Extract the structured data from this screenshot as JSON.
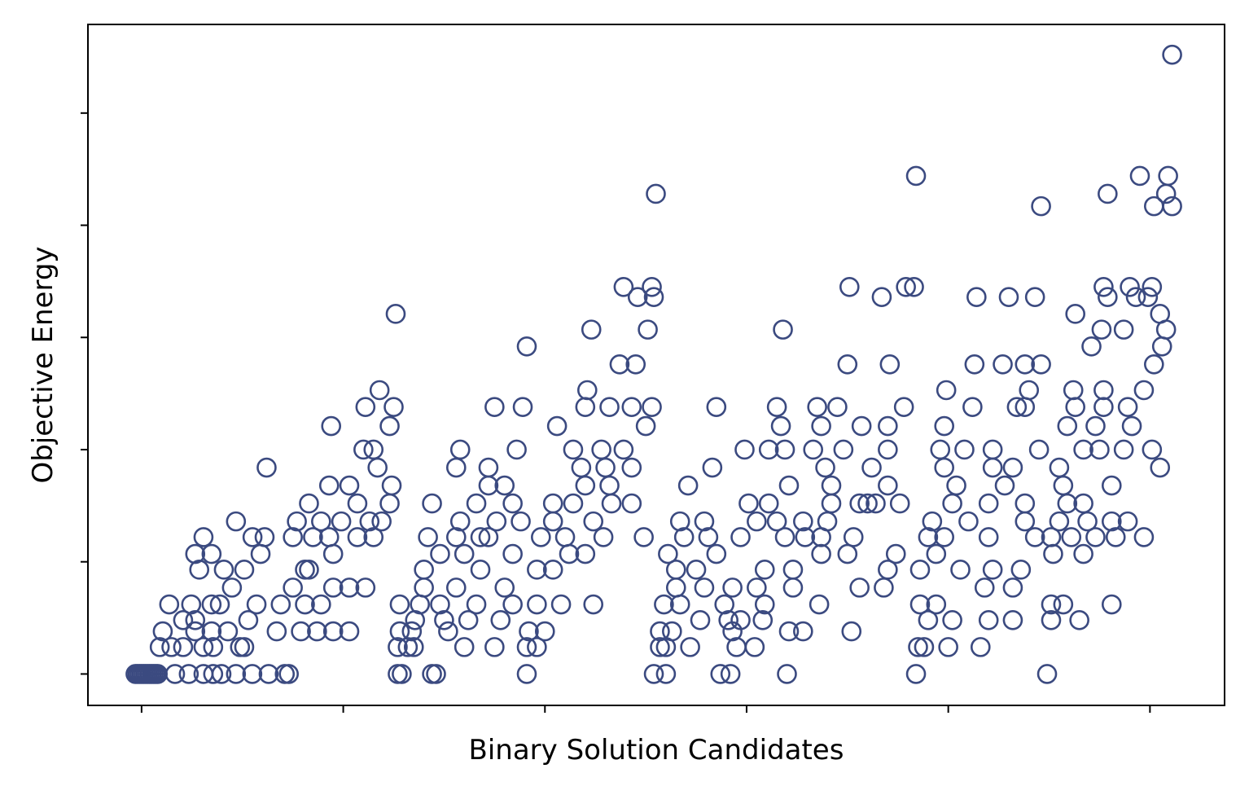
{
  "chart_data": {
    "type": "scatter",
    "x_label": "Binary Solution Candidates",
    "y_label": "Objective Energy",
    "color": "#3b4a80",
    "xlim": [
      -26.6,
      537
    ],
    "ylim": [
      -2.8,
      57.9
    ],
    "xticks": [
      0,
      100,
      200,
      300,
      400,
      500
    ],
    "yticks": [
      0,
      10,
      20,
      30,
      40,
      50
    ],
    "x": [
      -3,
      -2,
      -1,
      0,
      1,
      2,
      3,
      4,
      5,
      6,
      7,
      8,
      16.6,
      23.4,
      30.7,
      35.5,
      39.6,
      46.8,
      54.9,
      63,
      71,
      73,
      127,
      129,
      144,
      146,
      191,
      254,
      260,
      287,
      292,
      320,
      384,
      449,
      9,
      14.8,
      20.6,
      30.7,
      35.5,
      48.8,
      50.9,
      127,
      132,
      135,
      160,
      175,
      191,
      196,
      257,
      260,
      272,
      295,
      304,
      385,
      388,
      400,
      416,
      10.5,
      26.6,
      34.7,
      42.8,
      67,
      79,
      87,
      95,
      103,
      128,
      134,
      152,
      192,
      200,
      257,
      263,
      293,
      321,
      328,
      352,
      20.6,
      26.6,
      52.9,
      135.6,
      150,
      162,
      178,
      277,
      291,
      297,
      308,
      390,
      402,
      420,
      432,
      451,
      465,
      13.7,
      24.6,
      34.7,
      38.8,
      57,
      69,
      81,
      89,
      128,
      138,
      148,
      166,
      184,
      196,
      208,
      224,
      259,
      267,
      289,
      309,
      336,
      386,
      394,
      451,
      457,
      481,
      44.8,
      75,
      95,
      103,
      111,
      140,
      156,
      180,
      265,
      279,
      293,
      305,
      323,
      356,
      368,
      418,
      432,
      28.6,
      40.8,
      50.9,
      81,
      83,
      140,
      168,
      196,
      204,
      265,
      275,
      309,
      323,
      370,
      386,
      406,
      422,
      436,
      26.6,
      34.7,
      59,
      95,
      148,
      160,
      184,
      212,
      220,
      261,
      285,
      337,
      350,
      374,
      394,
      452,
      467,
      30.7,
      55,
      61,
      75,
      85,
      93,
      107,
      115,
      142,
      156,
      168,
      172,
      198,
      210,
      229,
      249,
      269,
      281,
      297,
      319,
      329,
      337,
      353,
      390,
      398,
      420,
      443,
      451,
      461,
      473,
      483,
      497,
      46.8,
      77,
      89,
      99,
      113,
      119,
      158,
      176,
      188,
      204,
      224,
      267,
      279,
      305,
      315,
      328,
      340,
      392,
      410,
      438,
      455,
      469,
      481,
      489,
      83,
      107,
      123,
      144,
      166,
      184,
      204,
      214,
      233,
      243,
      301,
      311,
      342,
      356,
      360,
      364,
      376,
      402,
      420,
      438,
      459,
      467,
      93,
      103,
      124,
      172,
      180,
      220,
      232,
      271,
      321,
      342,
      370,
      404,
      428,
      457,
      481,
      62,
      117,
      156,
      172,
      218,
      230,
      243,
      283,
      339,
      362,
      398,
      422,
      432,
      455,
      505,
      110,
      115,
      158,
      186,
      214,
      228,
      239,
      299,
      311,
      319,
      333,
      348,
      370,
      396,
      408,
      422,
      445,
      467,
      475,
      487,
      501,
      94,
      123,
      206,
      250,
      317,
      337,
      357,
      370,
      398,
      459,
      473,
      491,
      111,
      125,
      175,
      189,
      220,
      232,
      243,
      253,
      285,
      315,
      335,
      345,
      378,
      412,
      434,
      438,
      463,
      477,
      489,
      118,
      221,
      399,
      440,
      462,
      477,
      497,
      237,
      245,
      350,
      371,
      413,
      427,
      438,
      446,
      502,
      191,
      471,
      506,
      223,
      251,
      318,
      476,
      487,
      508,
      126,
      463,
      505,
      246,
      254,
      367,
      414,
      430,
      443,
      479,
      493,
      499,
      239,
      253,
      351,
      379,
      383,
      477,
      490,
      501,
      446,
      502,
      511,
      255,
      479,
      508,
      384,
      495,
      509,
      511
    ],
    "values": [
      0,
      0,
      0,
      0,
      0,
      0,
      0,
      0,
      0,
      0,
      0,
      0,
      0,
      0,
      0,
      0,
      0,
      0,
      0,
      0,
      0,
      0,
      0,
      0,
      0,
      0,
      0,
      0,
      0,
      0,
      0,
      0,
      0,
      0,
      2.4,
      2.4,
      2.4,
      2.4,
      2.4,
      2.4,
      2.4,
      2.4,
      2.4,
      2.4,
      2.4,
      2.4,
      2.4,
      2.4,
      2.4,
      2.4,
      2.4,
      2.4,
      2.4,
      2.4,
      2.4,
      2.4,
      2.4,
      3.8,
      3.8,
      3.8,
      3.8,
      3.8,
      3.8,
      3.8,
      3.8,
      3.8,
      3.8,
      3.8,
      3.8,
      3.8,
      3.8,
      3.8,
      3.8,
      3.8,
      3.8,
      3.8,
      3.8,
      4.8,
      4.8,
      4.8,
      4.8,
      4.8,
      4.8,
      4.8,
      4.8,
      4.8,
      4.8,
      4.8,
      4.8,
      4.8,
      4.8,
      4.8,
      4.8,
      4.8,
      6.2,
      6.2,
      6.2,
      6.2,
      6.2,
      6.2,
      6.2,
      6.2,
      6.2,
      6.2,
      6.2,
      6.2,
      6.2,
      6.2,
      6.2,
      6.2,
      6.2,
      6.2,
      6.2,
      6.2,
      6.2,
      6.2,
      6.2,
      6.2,
      6.2,
      6.2,
      7.7,
      7.7,
      7.7,
      7.7,
      7.7,
      7.7,
      7.7,
      7.7,
      7.7,
      7.7,
      7.7,
      7.7,
      7.7,
      7.7,
      7.7,
      7.7,
      7.7,
      9.3,
      9.3,
      9.3,
      9.3,
      9.3,
      9.3,
      9.3,
      9.3,
      9.3,
      9.3,
      9.3,
      9.3,
      9.3,
      9.3,
      9.3,
      9.3,
      9.3,
      9.3,
      10.7,
      10.7,
      10.7,
      10.7,
      10.7,
      10.7,
      10.7,
      10.7,
      10.7,
      10.7,
      10.7,
      10.7,
      10.7,
      10.7,
      10.7,
      10.7,
      10.7,
      12.2,
      12.2,
      12.2,
      12.2,
      12.2,
      12.2,
      12.2,
      12.2,
      12.2,
      12.2,
      12.2,
      12.2,
      12.2,
      12.2,
      12.2,
      12.2,
      12.2,
      12.2,
      12.2,
      12.2,
      12.2,
      12.2,
      12.2,
      12.2,
      12.2,
      12.2,
      12.2,
      12.2,
      12.2,
      12.2,
      12.2,
      12.2,
      13.6,
      13.6,
      13.6,
      13.6,
      13.6,
      13.6,
      13.6,
      13.6,
      13.6,
      13.6,
      13.6,
      13.6,
      13.6,
      13.6,
      13.6,
      13.6,
      13.6,
      13.6,
      13.6,
      13.6,
      13.6,
      13.6,
      13.6,
      13.6,
      15.2,
      15.2,
      15.2,
      15.2,
      15.2,
      15.2,
      15.2,
      15.2,
      15.2,
      15.2,
      15.2,
      15.2,
      15.2,
      15.2,
      15.2,
      15.2,
      15.2,
      15.2,
      15.2,
      15.2,
      15.2,
      15.2,
      16.8,
      16.8,
      16.8,
      16.8,
      16.8,
      16.8,
      16.8,
      16.8,
      16.8,
      16.8,
      16.8,
      16.8,
      16.8,
      16.8,
      16.8,
      18.4,
      18.4,
      18.4,
      18.4,
      18.4,
      18.4,
      18.4,
      18.4,
      18.4,
      18.4,
      18.4,
      18.4,
      18.4,
      18.4,
      18.4,
      20,
      20,
      20,
      20,
      20,
      20,
      20,
      20,
      20,
      20,
      20,
      20,
      20,
      20,
      20,
      20,
      20,
      20,
      20,
      20,
      20,
      22.1,
      22.1,
      22.1,
      22.1,
      22.1,
      22.1,
      22.1,
      22.1,
      22.1,
      22.1,
      22.1,
      22.1,
      23.8,
      23.8,
      23.8,
      23.8,
      23.8,
      23.8,
      23.8,
      23.8,
      23.8,
      23.8,
      23.8,
      23.8,
      23.8,
      23.8,
      23.8,
      23.8,
      23.8,
      23.8,
      23.8,
      25.3,
      25.3,
      25.3,
      25.3,
      25.3,
      25.3,
      25.3,
      27.6,
      27.6,
      27.6,
      27.6,
      27.6,
      27.6,
      27.6,
      27.6,
      27.6,
      29.2,
      29.2,
      29.2,
      30.7,
      30.7,
      30.7,
      30.7,
      30.7,
      30.7,
      32.1,
      32.1,
      32.1,
      33.6,
      33.6,
      33.6,
      33.6,
      33.6,
      33.6,
      33.6,
      33.6,
      33.6,
      34.5,
      34.5,
      34.5,
      34.5,
      34.5,
      34.5,
      34.5,
      34.5,
      41.7,
      41.7,
      41.7,
      42.8,
      42.8,
      42.8,
      44.4,
      44.4,
      44.4,
      55.2
    ]
  }
}
